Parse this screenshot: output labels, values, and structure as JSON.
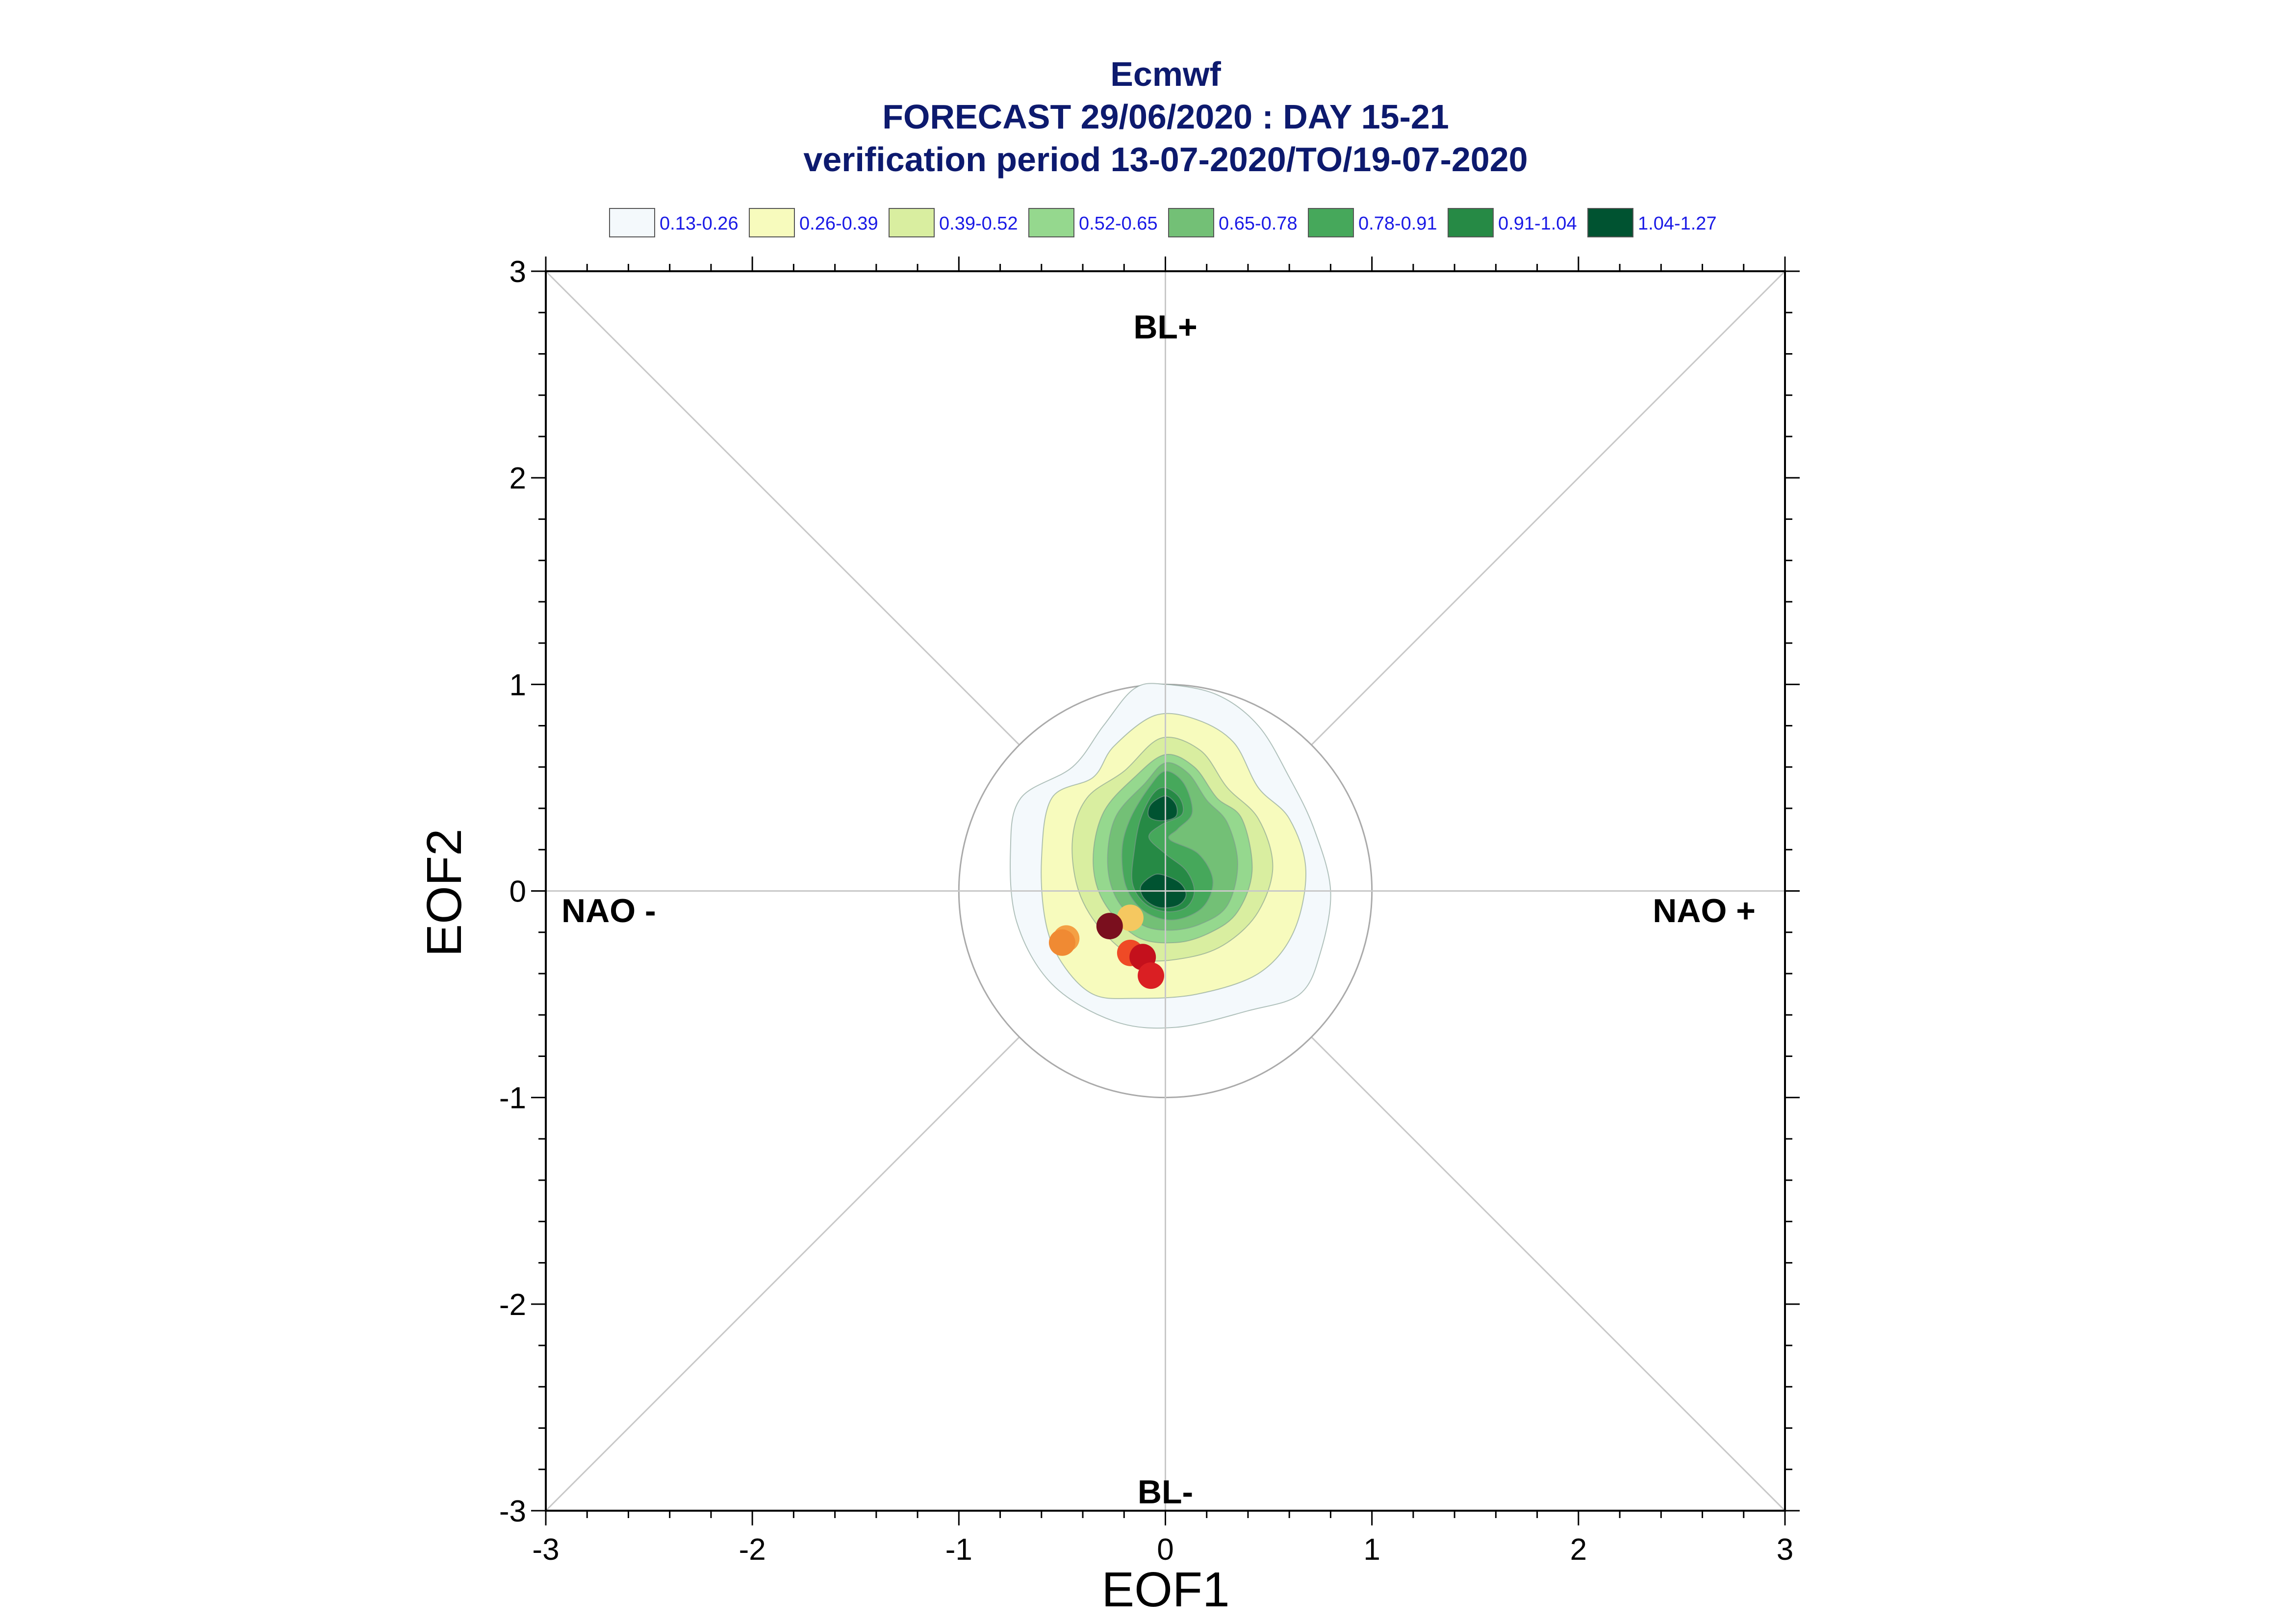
{
  "chart_data": {
    "type": "scatter",
    "title_lines": [
      "Ecmwf",
      "FORECAST 29/06/2020 : DAY 15-21",
      "verification period 13-07-2020/TO/19-07-2020"
    ],
    "xlabel": "EOF1",
    "ylabel": "EOF2",
    "xlim": [
      -3,
      3
    ],
    "ylim": [
      -3,
      3
    ],
    "x_ticks": [
      "-3",
      "-2",
      "-1",
      "0",
      "1",
      "2",
      "3"
    ],
    "y_ticks": [
      "-3",
      "-2",
      "-1",
      "0",
      "1",
      "2",
      "3"
    ],
    "regime_labels": {
      "top": "BL+",
      "bottom": "BL-",
      "left": "NAO -",
      "right": "NAO +"
    },
    "reference_circle_radius": 1,
    "legend": [
      {
        "label": "0.13-0.26",
        "color": "#f4f9fc"
      },
      {
        "label": "0.26-0.39",
        "color": "#f7fbbd"
      },
      {
        "label": "0.39-0.52",
        "color": "#d9eea0"
      },
      {
        "label": "0.52-0.65",
        "color": "#95d88e"
      },
      {
        "label": "0.65-0.78",
        "color": "#73c076"
      },
      {
        "label": "0.78-0.91",
        "color": "#46a85b"
      },
      {
        "label": "0.91-1.04",
        "color": "#268a45"
      },
      {
        "label": "1.04-1.27",
        "color": "#005331"
      }
    ],
    "contours": [
      {
        "level": "0.13-0.26",
        "color": "#f4f9fc",
        "points": [
          [
            0.0,
            1.0
          ],
          [
            0.25,
            0.95
          ],
          [
            0.45,
            0.8
          ],
          [
            0.6,
            0.55
          ],
          [
            0.72,
            0.3
          ],
          [
            0.8,
            0.0
          ],
          [
            0.75,
            -0.3
          ],
          [
            0.65,
            -0.5
          ],
          [
            0.4,
            -0.58
          ],
          [
            0.05,
            -0.66
          ],
          [
            -0.25,
            -0.63
          ],
          [
            -0.55,
            -0.45
          ],
          [
            -0.72,
            -0.15
          ],
          [
            -0.75,
            0.2
          ],
          [
            -0.7,
            0.45
          ],
          [
            -0.45,
            0.6
          ],
          [
            -0.3,
            0.8
          ],
          [
            -0.15,
            0.98
          ]
        ]
      },
      {
        "level": "0.26-0.39",
        "color": "#f7fbbd",
        "points": [
          [
            -0.05,
            0.85
          ],
          [
            0.15,
            0.83
          ],
          [
            0.33,
            0.72
          ],
          [
            0.45,
            0.5
          ],
          [
            0.6,
            0.35
          ],
          [
            0.68,
            0.1
          ],
          [
            0.62,
            -0.2
          ],
          [
            0.45,
            -0.4
          ],
          [
            0.15,
            -0.5
          ],
          [
            -0.15,
            -0.52
          ],
          [
            -0.35,
            -0.5
          ],
          [
            -0.5,
            -0.35
          ],
          [
            -0.58,
            -0.15
          ],
          [
            -0.6,
            0.15
          ],
          [
            -0.55,
            0.45
          ],
          [
            -0.35,
            0.55
          ],
          [
            -0.25,
            0.7
          ]
        ]
      },
      {
        "level": "0.39-0.52",
        "color": "#d9eea0",
        "points": [
          [
            -0.02,
            0.74
          ],
          [
            0.17,
            0.68
          ],
          [
            0.3,
            0.5
          ],
          [
            0.45,
            0.35
          ],
          [
            0.52,
            0.12
          ],
          [
            0.45,
            -0.1
          ],
          [
            0.3,
            -0.25
          ],
          [
            0.12,
            -0.32
          ],
          [
            -0.12,
            -0.33
          ],
          [
            -0.3,
            -0.2
          ],
          [
            -0.42,
            0.0
          ],
          [
            -0.45,
            0.25
          ],
          [
            -0.38,
            0.45
          ],
          [
            -0.2,
            0.58
          ]
        ]
      },
      {
        "level": "0.52-0.65",
        "color": "#95d88e",
        "points": [
          [
            0.0,
            0.66
          ],
          [
            0.14,
            0.6
          ],
          [
            0.25,
            0.45
          ],
          [
            0.37,
            0.35
          ],
          [
            0.42,
            0.1
          ],
          [
            0.35,
            -0.1
          ],
          [
            0.22,
            -0.2
          ],
          [
            0.05,
            -0.25
          ],
          [
            -0.14,
            -0.22
          ],
          [
            -0.3,
            -0.05
          ],
          [
            -0.35,
            0.15
          ],
          [
            -0.3,
            0.38
          ],
          [
            -0.15,
            0.55
          ]
        ]
      },
      {
        "level": "0.65-0.78",
        "color": "#73c076",
        "points": [
          [
            0.0,
            0.62
          ],
          [
            0.11,
            0.57
          ],
          [
            0.2,
            0.44
          ],
          [
            0.3,
            0.33
          ],
          [
            0.35,
            0.13
          ],
          [
            0.3,
            -0.07
          ],
          [
            0.17,
            -0.16
          ],
          [
            0.02,
            -0.19
          ],
          [
            -0.12,
            -0.16
          ],
          [
            -0.24,
            -0.03
          ],
          [
            -0.28,
            0.15
          ],
          [
            -0.24,
            0.36
          ],
          [
            -0.1,
            0.52
          ]
        ]
      },
      {
        "level": "0.78-0.91",
        "color": "#46a85b",
        "points": [
          [
            0.0,
            0.58
          ],
          [
            0.09,
            0.52
          ],
          [
            0.13,
            0.38
          ],
          [
            0.06,
            0.3
          ],
          [
            0.02,
            0.25
          ],
          [
            0.16,
            0.18
          ],
          [
            0.23,
            0.05
          ],
          [
            0.18,
            -0.08
          ],
          [
            0.04,
            -0.14
          ],
          [
            -0.1,
            -0.1
          ],
          [
            -0.19,
            0.02
          ],
          [
            -0.21,
            0.2
          ],
          [
            -0.17,
            0.35
          ],
          [
            -0.08,
            0.5
          ]
        ]
      },
      {
        "level": "0.91-1.04",
        "color": "#268a45",
        "points": [
          [
            0.0,
            0.5
          ],
          [
            0.07,
            0.45
          ],
          [
            0.08,
            0.37
          ],
          [
            -0.02,
            0.32
          ],
          [
            -0.08,
            0.26
          ],
          [
            0.0,
            0.18
          ],
          [
            0.1,
            0.1
          ],
          [
            0.14,
            0.0
          ],
          [
            0.1,
            -0.08
          ],
          [
            0.0,
            -0.1
          ],
          [
            -0.1,
            -0.06
          ],
          [
            -0.16,
            0.04
          ],
          [
            -0.15,
            0.2
          ],
          [
            -0.12,
            0.35
          ],
          [
            -0.06,
            0.47
          ]
        ]
      },
      {
        "level": "1.04-1.27 (upper)",
        "color": "#005331",
        "points": [
          [
            0.0,
            0.46
          ],
          [
            0.05,
            0.42
          ],
          [
            0.05,
            0.36
          ],
          [
            -0.02,
            0.34
          ],
          [
            -0.08,
            0.36
          ],
          [
            -0.07,
            0.42
          ]
        ]
      },
      {
        "level": "1.04-1.27 (lower)",
        "color": "#005331",
        "points": [
          [
            -0.02,
            0.08
          ],
          [
            0.07,
            0.04
          ],
          [
            0.1,
            -0.02
          ],
          [
            0.06,
            -0.07
          ],
          [
            -0.03,
            -0.08
          ],
          [
            -0.1,
            -0.04
          ],
          [
            -0.12,
            0.02
          ],
          [
            -0.07,
            0.07
          ]
        ]
      }
    ],
    "points": [
      {
        "x": -0.17,
        "y": -0.13,
        "color": "#f5c860"
      },
      {
        "x": -0.27,
        "y": -0.17,
        "color": "#7a0f1e"
      },
      {
        "x": -0.48,
        "y": -0.23,
        "color": "#f4a044"
      },
      {
        "x": -0.5,
        "y": -0.25,
        "color": "#f08a33"
      },
      {
        "x": -0.17,
        "y": -0.3,
        "color": "#ef4a26"
      },
      {
        "x": -0.11,
        "y": -0.32,
        "color": "#c4101c"
      },
      {
        "x": -0.07,
        "y": -0.41,
        "color": "#da1f23"
      }
    ]
  }
}
